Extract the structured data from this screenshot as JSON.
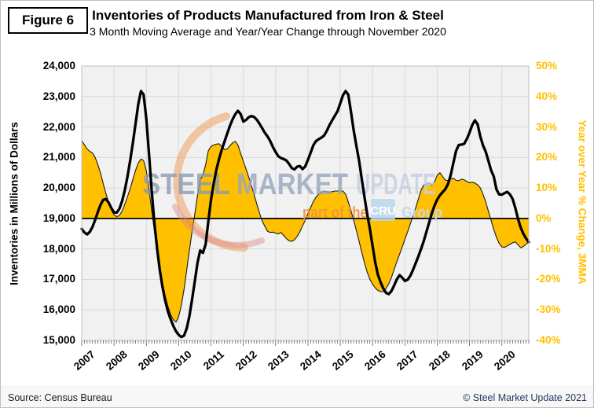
{
  "header": {
    "figure_label": "Figure 6",
    "title": "Inventories of Products Manufactured from Iron & Steel",
    "subtitle": "3 Month Moving Average and Year/Year Change through November 2020"
  },
  "footer": {
    "source": "Source: Census Bureau",
    "copyright": "© Steel Market Update 2021"
  },
  "watermark": {
    "word1": "STEEL",
    "word2": "MARKET",
    "word3": "UPDATE",
    "tagline_prefix": "part of the",
    "tagline_logo": "CRU",
    "tagline_suffix": "Group"
  },
  "colors": {
    "gold": "#FFC000",
    "line": "#000000",
    "area_outline": "#1a1a1a",
    "plot_bg": "#f1f1f1",
    "grid": "#d9d9d9",
    "frame": "#bfbfbf",
    "month_tick": "#595959",
    "copyright_text": "#1f3a60",
    "wm_word1": "#8e9bb3",
    "wm_word2": "#99a6be",
    "wm_word3": "#c5cfe1",
    "wm_orange": "#f0953b",
    "wm_arc": "#ee8733",
    "wm_arc2": "#de8a8a",
    "cru_box": "#bad7ec",
    "cru_text": "#ffffff",
    "group_text": "#c3d9ed"
  },
  "chart_data": {
    "type": "line+area",
    "title": "Inventories of Products Manufactured from Iron & Steel",
    "subtitle": "3 Month Moving Average and Year/Year Change through November 2020",
    "x": {
      "start": "2007-01",
      "end": "2020-11",
      "points": 167,
      "year_tick_labels": [
        "2007",
        "2008",
        "2009",
        "2010",
        "2011",
        "2012",
        "2013",
        "2014",
        "2015",
        "2016",
        "2017",
        "2018",
        "2019",
        "2020"
      ]
    },
    "left_axis": {
      "label": "Inventories in Millions of Dollars",
      "min": 15000,
      "max": 24000,
      "tick_step": 1000,
      "ticks": [
        24000,
        23000,
        22000,
        21000,
        20000,
        19000,
        18000,
        17000,
        16000,
        15000
      ]
    },
    "right_axis": {
      "label": "Year over Year % Change, 3MMA",
      "min": -40,
      "max": 50,
      "tick_step": 10,
      "ticks": [
        50,
        40,
        30,
        20,
        10,
        0,
        -10,
        -20,
        -30,
        -40
      ]
    },
    "grid": true,
    "legend": "none",
    "series": [
      {
        "name": "Inventories 3-month moving average, $ millions",
        "axis": "left",
        "style": "line",
        "color": "#000000",
        "values": [
          18660,
          18540,
          18480,
          18560,
          18720,
          18950,
          19220,
          19450,
          19610,
          19640,
          19520,
          19340,
          19200,
          19190,
          19320,
          19570,
          19920,
          20380,
          20900,
          21480,
          22120,
          22750,
          23180,
          23060,
          22250,
          21100,
          19900,
          18850,
          18000,
          17300,
          16750,
          16300,
          15950,
          15700,
          15480,
          15300,
          15180,
          15110,
          15160,
          15400,
          15800,
          16350,
          16950,
          17550,
          17950,
          17870,
          18150,
          18900,
          19600,
          20150,
          20600,
          20950,
          21250,
          21520,
          21780,
          22030,
          22250,
          22420,
          22530,
          22430,
          22180,
          22230,
          22320,
          22360,
          22330,
          22240,
          22110,
          21960,
          21810,
          21690,
          21540,
          21340,
          21180,
          21040,
          20980,
          20950,
          20900,
          20790,
          20650,
          20610,
          20700,
          20720,
          20620,
          20710,
          20920,
          21160,
          21400,
          21540,
          21600,
          21650,
          21720,
          21870,
          22060,
          22220,
          22370,
          22520,
          22780,
          23040,
          23180,
          23060,
          22480,
          21880,
          21380,
          20880,
          20280,
          19700,
          19150,
          18650,
          18100,
          17550,
          17150,
          16900,
          16700,
          16560,
          16520,
          16620,
          16800,
          17000,
          17140,
          17060,
          16950,
          16990,
          17120,
          17310,
          17530,
          17760,
          18000,
          18260,
          18560,
          18870,
          19170,
          19420,
          19620,
          19760,
          19860,
          19960,
          20130,
          20420,
          20820,
          21220,
          21410,
          21420,
          21450,
          21610,
          21820,
          22060,
          22220,
          22090,
          21690,
          21400,
          21190,
          20890,
          20580,
          20380,
          19950,
          19790,
          19780,
          19830,
          19875,
          19790,
          19640,
          19340,
          18990,
          18700,
          18500,
          18340,
          18225
        ]
      },
      {
        "name": "Year over Year % change, 3MMA",
        "axis": "right",
        "style": "area",
        "color": "#FFC000",
        "values": [
          25.5,
          24.2,
          22.8,
          22.0,
          21.5,
          20.0,
          17.6,
          14.8,
          11.4,
          8.2,
          5.2,
          2.8,
          1.2,
          0.6,
          1.0,
          2.4,
          4.6,
          7.2,
          9.8,
          12.8,
          15.8,
          18.2,
          19.5,
          19.0,
          15.5,
          9.5,
          2.5,
          -4.0,
          -10.5,
          -16.0,
          -21.0,
          -25.5,
          -28.8,
          -31.5,
          -33.2,
          -34.0,
          -32.2,
          -28.4,
          -23.2,
          -16.8,
          -10.4,
          -4.2,
          1.6,
          7.6,
          12.6,
          14.2,
          17.6,
          22.2,
          23.6,
          24.1,
          24.4,
          24.5,
          23.6,
          22.6,
          22.8,
          23.8,
          24.8,
          25.3,
          24.1,
          21.4,
          18.8,
          16.2,
          13.6,
          10.8,
          7.8,
          4.8,
          1.8,
          -0.8,
          -2.6,
          -4.2,
          -4.6,
          -4.5,
          -4.8,
          -5.1,
          -4.6,
          -5.6,
          -6.6,
          -7.3,
          -7.5,
          -7.0,
          -5.9,
          -4.4,
          -2.4,
          -0.6,
          1.6,
          3.6,
          5.6,
          7.0,
          8.0,
          8.6,
          9.0,
          8.8,
          8.6,
          8.8,
          9.0,
          9.0,
          9.0,
          9.0,
          8.0,
          5.4,
          2.4,
          -0.6,
          -4.0,
          -7.6,
          -11.2,
          -14.6,
          -17.6,
          -20.0,
          -21.6,
          -22.8,
          -23.6,
          -24.0,
          -24.0,
          -23.0,
          -21.4,
          -19.4,
          -16.8,
          -14.2,
          -11.8,
          -9.4,
          -6.8,
          -4.4,
          -1.8,
          0.8,
          3.4,
          6.4,
          9.3,
          10.9,
          11.3,
          11.6,
          10.8,
          12.0,
          14.2,
          15.0,
          13.8,
          12.6,
          12.4,
          12.9,
          13.2,
          12.5,
          12.4,
          12.9,
          12.7,
          12.1,
          11.7,
          11.9,
          11.6,
          11.0,
          10.0,
          8.0,
          5.4,
          2.4,
          -0.6,
          -3.6,
          -6.2,
          -8.2,
          -9.3,
          -9.5,
          -9.0,
          -8.5,
          -8.0,
          -7.7,
          -8.6,
          -9.6,
          -9.2,
          -8.4,
          -7.8
        ]
      }
    ]
  }
}
